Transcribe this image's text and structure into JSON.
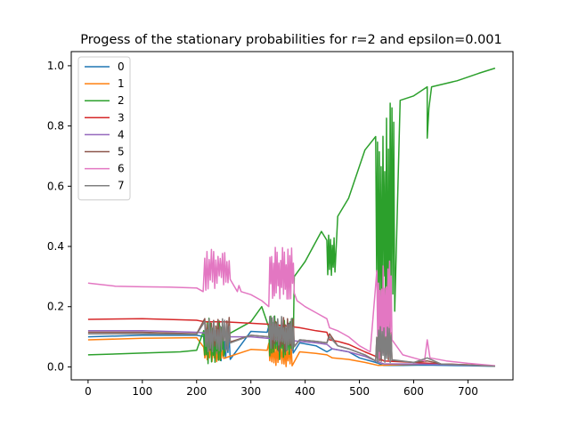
{
  "chart_data": {
    "type": "line",
    "title": "Progess of the stationary probabilities for r=2 and epsilon=0.001",
    "xlabel": "",
    "ylabel": "",
    "xlim": [
      -31,
      783
    ],
    "ylim": [
      -0.043,
      1.047
    ],
    "x_ticks": [
      0,
      100,
      200,
      300,
      400,
      500,
      600,
      700
    ],
    "y_ticks": [
      0.0,
      0.2,
      0.4,
      0.6,
      0.8,
      1.0
    ],
    "y_tick_labels": [
      "0.0",
      "0.2",
      "0.4",
      "0.6",
      "0.8",
      "1.0"
    ],
    "grid": false,
    "legend": {
      "position": "top-left",
      "entries": [
        "0",
        "1",
        "2",
        "3",
        "4",
        "5",
        "6",
        "7"
      ]
    },
    "series": [
      {
        "name": "0",
        "color": "#1f77b4",
        "points": [
          [
            0,
            0.1
          ],
          [
            100,
            0.105
          ],
          [
            200,
            0.105
          ],
          [
            215,
            0.09
          ],
          [
            225,
            0.1
          ],
          [
            260,
            0.11
          ],
          [
            300,
            0.118
          ],
          [
            330,
            0.115
          ],
          [
            345,
            0.1
          ],
          [
            370,
            0.1
          ],
          [
            390,
            0.08
          ],
          [
            420,
            0.07
          ],
          [
            440,
            0.05
          ],
          [
            450,
            0.06
          ],
          [
            480,
            0.05
          ],
          [
            500,
            0.03
          ],
          [
            530,
            0.015
          ],
          [
            545,
            0.005
          ],
          [
            580,
            0.005
          ],
          [
            620,
            0.006
          ],
          [
            700,
            0.004
          ],
          [
            750,
            0.002
          ]
        ]
      },
      {
        "name": "1",
        "color": "#ff7f0e",
        "points": [
          [
            0,
            0.09
          ],
          [
            100,
            0.095
          ],
          [
            200,
            0.097
          ],
          [
            215,
            0.06
          ],
          [
            250,
            0.06
          ],
          [
            300,
            0.058
          ],
          [
            330,
            0.055
          ],
          [
            335,
            0.02
          ],
          [
            345,
            0.01
          ],
          [
            370,
            0.03
          ],
          [
            390,
            0.05
          ],
          [
            420,
            0.045
          ],
          [
            440,
            0.04
          ],
          [
            450,
            0.03
          ],
          [
            480,
            0.025
          ],
          [
            510,
            0.015
          ],
          [
            535,
            0.005
          ],
          [
            580,
            0.008
          ],
          [
            630,
            0.01
          ],
          [
            700,
            0.007
          ],
          [
            750,
            0.003
          ]
        ]
      },
      {
        "name": "2",
        "color": "#2ca02c",
        "points": [
          [
            0,
            0.04
          ],
          [
            100,
            0.046
          ],
          [
            170,
            0.05
          ],
          [
            200,
            0.055
          ],
          [
            215,
            0.03
          ],
          [
            235,
            0.09
          ],
          [
            260,
            0.11
          ],
          [
            300,
            0.15
          ],
          [
            320,
            0.2
          ],
          [
            333,
            0.28
          ],
          [
            345,
            0.25
          ],
          [
            360,
            0.26
          ],
          [
            380,
            0.3
          ],
          [
            400,
            0.35
          ],
          [
            430,
            0.45
          ],
          [
            440,
            0.5
          ],
          [
            445,
            0.42
          ],
          [
            460,
            0.5
          ],
          [
            480,
            0.56
          ],
          [
            510,
            0.72
          ],
          [
            530,
            0.885
          ],
          [
            540,
            0.84
          ],
          [
            560,
            0.87
          ],
          [
            575,
            0.885
          ],
          [
            600,
            0.9
          ],
          [
            625,
            0.93
          ],
          [
            625,
            0.76
          ],
          [
            628,
            0.86
          ],
          [
            633,
            0.93
          ],
          [
            680,
            0.95
          ],
          [
            720,
            0.975
          ],
          [
            750,
            0.992
          ]
        ]
      },
      {
        "name": "3",
        "color": "#d62728",
        "points": [
          [
            0,
            0.158
          ],
          [
            100,
            0.16
          ],
          [
            200,
            0.155
          ],
          [
            215,
            0.15
          ],
          [
            250,
            0.15
          ],
          [
            300,
            0.145
          ],
          [
            330,
            0.142
          ],
          [
            345,
            0.14
          ],
          [
            370,
            0.135
          ],
          [
            390,
            0.13
          ],
          [
            420,
            0.12
          ],
          [
            440,
            0.115
          ],
          [
            445,
            0.09
          ],
          [
            460,
            0.085
          ],
          [
            480,
            0.075
          ],
          [
            510,
            0.05
          ],
          [
            530,
            0.035
          ],
          [
            545,
            0.02
          ],
          [
            600,
            0.015
          ],
          [
            650,
            0.01
          ],
          [
            700,
            0.007
          ],
          [
            750,
            0.003
          ]
        ]
      },
      {
        "name": "4",
        "color": "#9467bd",
        "points": [
          [
            0,
            0.12
          ],
          [
            100,
            0.12
          ],
          [
            200,
            0.115
          ],
          [
            230,
            0.11
          ],
          [
            260,
            0.1
          ],
          [
            300,
            0.1
          ],
          [
            330,
            0.095
          ],
          [
            360,
            0.09
          ],
          [
            390,
            0.085
          ],
          [
            420,
            0.08
          ],
          [
            440,
            0.075
          ],
          [
            450,
            0.06
          ],
          [
            480,
            0.05
          ],
          [
            510,
            0.035
          ],
          [
            530,
            0.02
          ],
          [
            545,
            0.01
          ],
          [
            600,
            0.01
          ],
          [
            650,
            0.008
          ],
          [
            750,
            0.003
          ]
        ]
      },
      {
        "name": "5",
        "color": "#8c564b",
        "points": [
          [
            0,
            0.115
          ],
          [
            100,
            0.115
          ],
          [
            200,
            0.11
          ],
          [
            215,
            0.17
          ],
          [
            225,
            0.15
          ],
          [
            250,
            0.11
          ],
          [
            300,
            0.105
          ],
          [
            333,
            0.1
          ],
          [
            340,
            0.17
          ],
          [
            370,
            0.16
          ],
          [
            390,
            0.09
          ],
          [
            420,
            0.085
          ],
          [
            440,
            0.08
          ],
          [
            445,
            0.11
          ],
          [
            460,
            0.07
          ],
          [
            480,
            0.06
          ],
          [
            510,
            0.04
          ],
          [
            530,
            0.02
          ],
          [
            535,
            0.13
          ],
          [
            550,
            0.1
          ],
          [
            560,
            0.03
          ],
          [
            600,
            0.015
          ],
          [
            625,
            0.02
          ],
          [
            650,
            0.01
          ],
          [
            700,
            0.007
          ],
          [
            750,
            0.003
          ]
        ]
      },
      {
        "name": "6",
        "color": "#e377c2",
        "points": [
          [
            0,
            0.278
          ],
          [
            50,
            0.268
          ],
          [
            100,
            0.266
          ],
          [
            150,
            0.265
          ],
          [
            200,
            0.262
          ],
          [
            212,
            0.25
          ],
          [
            215,
            0.4
          ],
          [
            222,
            0.39
          ],
          [
            230,
            0.37
          ],
          [
            245,
            0.3
          ],
          [
            260,
            0.25
          ],
          [
            275,
            0.25
          ],
          [
            278,
            0.27
          ],
          [
            282,
            0.25
          ],
          [
            300,
            0.24
          ],
          [
            320,
            0.22
          ],
          [
            333,
            0.2
          ],
          [
            335,
            0.4
          ],
          [
            345,
            0.38
          ],
          [
            360,
            0.37
          ],
          [
            375,
            0.28
          ],
          [
            385,
            0.22
          ],
          [
            400,
            0.2
          ],
          [
            420,
            0.18
          ],
          [
            440,
            0.16
          ],
          [
            445,
            0.13
          ],
          [
            460,
            0.12
          ],
          [
            480,
            0.1
          ],
          [
            500,
            0.07
          ],
          [
            520,
            0.05
          ],
          [
            532,
            0.03
          ],
          [
            535,
            0.37
          ],
          [
            545,
            0.25
          ],
          [
            560,
            0.08
          ],
          [
            580,
            0.04
          ],
          [
            600,
            0.03
          ],
          [
            620,
            0.02
          ],
          [
            625,
            0.09
          ],
          [
            630,
            0.03
          ],
          [
            660,
            0.02
          ],
          [
            700,
            0.012
          ],
          [
            750,
            0.004
          ]
        ]
      },
      {
        "name": "7",
        "color": "#7f7f7f",
        "points": [
          [
            0,
            0.11
          ],
          [
            100,
            0.11
          ],
          [
            200,
            0.108
          ],
          [
            215,
            0.16
          ],
          [
            225,
            0.14
          ],
          [
            250,
            0.11
          ],
          [
            300,
            0.105
          ],
          [
            333,
            0.1
          ],
          [
            340,
            0.17
          ],
          [
            370,
            0.16
          ],
          [
            390,
            0.09
          ],
          [
            420,
            0.085
          ],
          [
            440,
            0.08
          ],
          [
            445,
            0.1
          ],
          [
            460,
            0.07
          ],
          [
            480,
            0.06
          ],
          [
            510,
            0.04
          ],
          [
            530,
            0.02
          ],
          [
            535,
            0.14
          ],
          [
            550,
            0.1
          ],
          [
            560,
            0.03
          ],
          [
            600,
            0.015
          ],
          [
            625,
            0.03
          ],
          [
            650,
            0.01
          ],
          [
            700,
            0.006
          ],
          [
            750,
            0.002
          ]
        ]
      }
    ],
    "oscillation_bursts": [
      {
        "series": "0",
        "x_start": 213,
        "x_end": 262,
        "low": 0.02,
        "high": 0.12,
        "count": 24,
        "seed": 1
      },
      {
        "series": "0",
        "x_start": 333,
        "x_end": 378,
        "low": 0.04,
        "high": 0.15,
        "count": 26,
        "seed": 2
      },
      {
        "series": "1",
        "x_start": 213,
        "x_end": 250,
        "low": 0.01,
        "high": 0.07,
        "count": 18,
        "seed": 3
      },
      {
        "series": "1",
        "x_start": 333,
        "x_end": 376,
        "low": 0.0,
        "high": 0.08,
        "count": 24,
        "seed": 4
      },
      {
        "series": "2",
        "x_start": 213,
        "x_end": 250,
        "low": 0.01,
        "high": 0.17,
        "count": 24,
        "seed": 5
      },
      {
        "series": "2",
        "x_start": 333,
        "x_end": 378,
        "low": 0.02,
        "high": 0.17,
        "count": 26,
        "seed": 6
      },
      {
        "series": "2",
        "x_start": 440,
        "x_end": 455,
        "low": 0.3,
        "high": 0.45,
        "count": 10,
        "seed": 7
      },
      {
        "series": "2",
        "x_start": 530,
        "x_end": 565,
        "low": 0.05,
        "high": 0.88,
        "count": 22,
        "seed": 8
      },
      {
        "series": "5",
        "x_start": 215,
        "x_end": 262,
        "low": 0.05,
        "high": 0.17,
        "count": 24,
        "seed": 9
      },
      {
        "series": "5",
        "x_start": 335,
        "x_end": 380,
        "low": 0.05,
        "high": 0.17,
        "count": 26,
        "seed": 10
      },
      {
        "series": "5",
        "x_start": 532,
        "x_end": 560,
        "low": 0.01,
        "high": 0.14,
        "count": 18,
        "seed": 11
      },
      {
        "series": "6",
        "x_start": 215,
        "x_end": 262,
        "low": 0.25,
        "high": 0.4,
        "count": 24,
        "seed": 12
      },
      {
        "series": "6",
        "x_start": 335,
        "x_end": 380,
        "low": 0.22,
        "high": 0.4,
        "count": 28,
        "seed": 13
      },
      {
        "series": "6",
        "x_start": 532,
        "x_end": 560,
        "low": 0.02,
        "high": 0.37,
        "count": 20,
        "seed": 14
      },
      {
        "series": "7",
        "x_start": 215,
        "x_end": 262,
        "low": 0.05,
        "high": 0.16,
        "count": 24,
        "seed": 15
      },
      {
        "series": "7",
        "x_start": 335,
        "x_end": 380,
        "low": 0.05,
        "high": 0.17,
        "count": 26,
        "seed": 16
      },
      {
        "series": "7",
        "x_start": 532,
        "x_end": 560,
        "low": 0.01,
        "high": 0.14,
        "count": 18,
        "seed": 17
      }
    ]
  }
}
